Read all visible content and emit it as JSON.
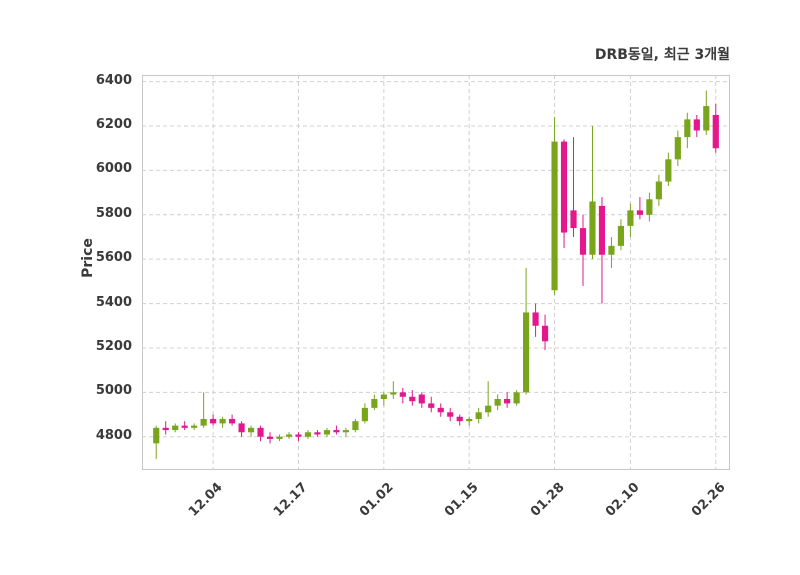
{
  "chart_data": {
    "type": "candlestick",
    "title": "DRB동일, 최근 3개월",
    "ylabel": "Price",
    "xlabel": "",
    "ylim": [
      4650,
      6430
    ],
    "y_ticks": [
      4800,
      5000,
      5200,
      5400,
      5600,
      5800,
      6000,
      6200,
      6400
    ],
    "x_tick_labels": [
      "12.04",
      "12.17",
      "01.02",
      "01.15",
      "01.28",
      "02.10",
      "02.26"
    ],
    "x_tick_indices": [
      6,
      15,
      24,
      33,
      42,
      50,
      59
    ],
    "grid": "dashed",
    "legend": "none",
    "colors": {
      "up": "#79a51c",
      "down": "#e2188c",
      "grid": "#d0d0d0",
      "border": "#c8c8c8",
      "text": "#3a3a3a",
      "background": "#ffffff"
    },
    "candles_format": [
      "open",
      "high",
      "low",
      "close"
    ],
    "candles": [
      [
        4770,
        4850,
        4700,
        4840
      ],
      [
        4840,
        4870,
        4810,
        4830
      ],
      [
        4830,
        4860,
        4820,
        4850
      ],
      [
        4850,
        4870,
        4830,
        4840
      ],
      [
        4840,
        4860,
        4830,
        4850
      ],
      [
        4850,
        5000,
        4840,
        4880
      ],
      [
        4880,
        4900,
        4850,
        4860
      ],
      [
        4860,
        4890,
        4840,
        4880
      ],
      [
        4880,
        4900,
        4850,
        4860
      ],
      [
        4860,
        4870,
        4800,
        4820
      ],
      [
        4820,
        4850,
        4800,
        4840
      ],
      [
        4840,
        4850,
        4780,
        4800
      ],
      [
        4800,
        4820,
        4770,
        4790
      ],
      [
        4790,
        4810,
        4780,
        4800
      ],
      [
        4800,
        4820,
        4790,
        4810
      ],
      [
        4810,
        4820,
        4780,
        4800
      ],
      [
        4800,
        4830,
        4790,
        4820
      ],
      [
        4820,
        4830,
        4800,
        4810
      ],
      [
        4810,
        4840,
        4800,
        4830
      ],
      [
        4830,
        4850,
        4810,
        4820
      ],
      [
        4820,
        4840,
        4800,
        4830
      ],
      [
        4830,
        4880,
        4820,
        4870
      ],
      [
        4870,
        4950,
        4860,
        4930
      ],
      [
        4930,
        4990,
        4920,
        4970
      ],
      [
        4970,
        5000,
        4940,
        4990
      ],
      [
        4990,
        5050,
        4970,
        5000
      ],
      [
        5000,
        5020,
        4950,
        4980
      ],
      [
        4980,
        5010,
        4940,
        4960
      ],
      [
        4990,
        5000,
        4930,
        4950
      ],
      [
        4950,
        4980,
        4910,
        4930
      ],
      [
        4930,
        4950,
        4890,
        4910
      ],
      [
        4910,
        4930,
        4870,
        4890
      ],
      [
        4890,
        4900,
        4850,
        4870
      ],
      [
        4870,
        4890,
        4850,
        4880
      ],
      [
        4880,
        4930,
        4860,
        4910
      ],
      [
        4910,
        5050,
        4890,
        4940
      ],
      [
        4940,
        4990,
        4920,
        4970
      ],
      [
        4970,
        5000,
        4930,
        4950
      ],
      [
        4950,
        5010,
        4940,
        5000
      ],
      [
        5000,
        5560,
        4990,
        5360
      ],
      [
        5360,
        5400,
        5250,
        5300
      ],
      [
        5300,
        5350,
        5190,
        5230
      ],
      [
        5460,
        6240,
        5440,
        6130
      ],
      [
        6130,
        6140,
        5650,
        5720
      ],
      [
        5820,
        6150,
        5700,
        5740
      ],
      [
        5740,
        5800,
        5480,
        5620
      ],
      [
        5620,
        6200,
        5600,
        5860
      ],
      [
        5840,
        5880,
        5400,
        5620
      ],
      [
        5620,
        5700,
        5560,
        5660
      ],
      [
        5660,
        5780,
        5640,
        5750
      ],
      [
        5750,
        5850,
        5700,
        5820
      ],
      [
        5820,
        5880,
        5780,
        5800
      ],
      [
        5800,
        5900,
        5770,
        5870
      ],
      [
        5870,
        5980,
        5840,
        5950
      ],
      [
        5950,
        6080,
        5930,
        6050
      ],
      [
        6050,
        6180,
        6020,
        6150
      ],
      [
        6150,
        6260,
        6100,
        6230
      ],
      [
        6230,
        6250,
        6150,
        6180
      ],
      [
        6180,
        6360,
        6160,
        6290
      ],
      [
        6250,
        6300,
        6080,
        6100
      ]
    ]
  }
}
